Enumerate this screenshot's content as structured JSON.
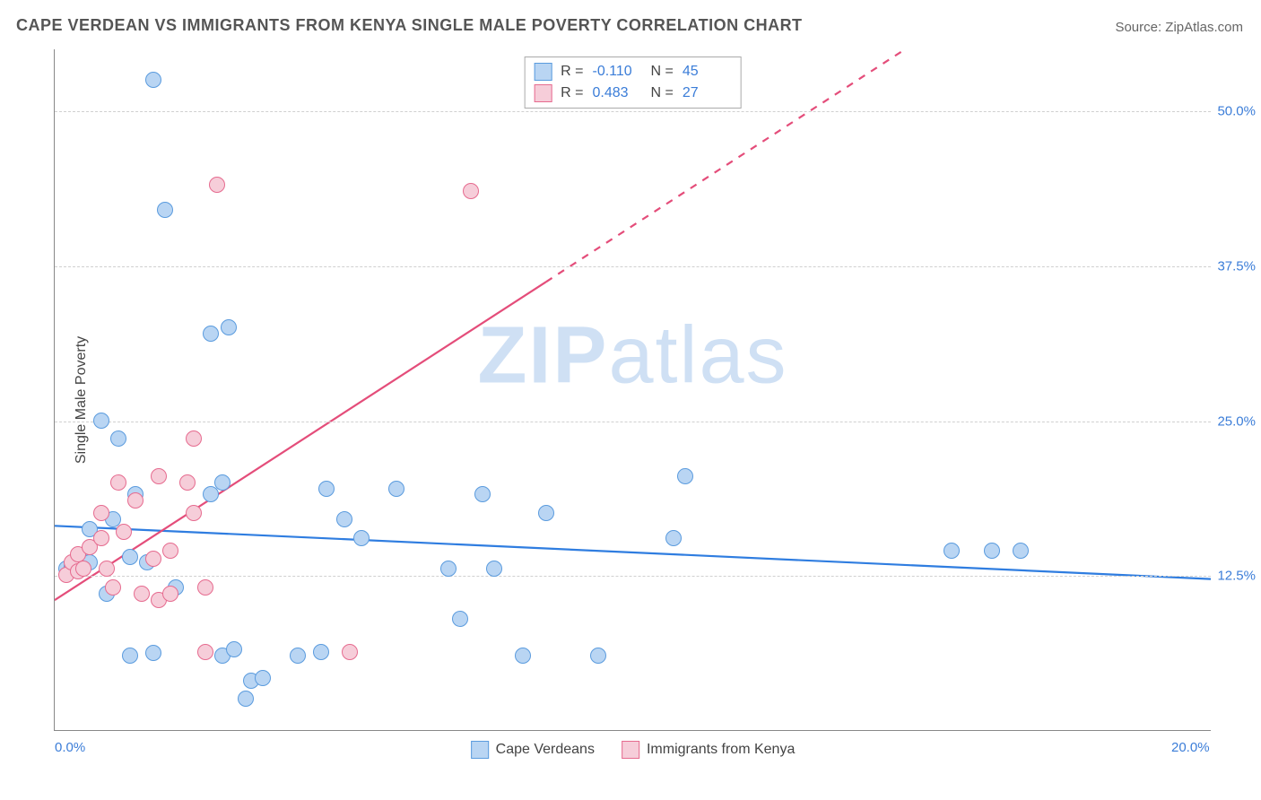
{
  "chart": {
    "type": "scatter",
    "title": "CAPE VERDEAN VS IMMIGRANTS FROM KENYA SINGLE MALE POVERTY CORRELATION CHART",
    "source_label": "Source: ZipAtlas.com",
    "ylabel": "Single Male Poverty",
    "watermark": {
      "bold": "ZIP",
      "light": "atlas"
    },
    "xlim": [
      0,
      20
    ],
    "ylim": [
      0,
      55
    ],
    "xticks": [
      {
        "value": 0,
        "label": "0.0%"
      },
      {
        "value": 20,
        "label": "20.0%"
      }
    ],
    "yticks": [
      {
        "value": 12.5,
        "label": "12.5%"
      },
      {
        "value": 25.0,
        "label": "25.0%"
      },
      {
        "value": 37.5,
        "label": "37.5%"
      },
      {
        "value": 50.0,
        "label": "50.0%"
      }
    ],
    "grid_color": "#d0d0d0",
    "background_color": "#ffffff",
    "axis_color": "#888888",
    "dot_radius": 9,
    "dot_border_width": 1.2,
    "series": [
      {
        "key": "cape_verdeans",
        "label": "Cape Verdeans",
        "fill_color": "#b9d5f3",
        "border_color": "#5a9bde",
        "r_value": "-0.110",
        "n_value": "45",
        "trendline": {
          "color": "#2f7de0",
          "width": 2.2,
          "dash": "none",
          "y_at_x0": 16.5,
          "y_at_x20": 12.2
        },
        "points": [
          [
            0.2,
            13.0
          ],
          [
            0.3,
            13.2
          ],
          [
            0.4,
            13.8
          ],
          [
            0.5,
            14.0
          ],
          [
            0.6,
            13.5
          ],
          [
            0.6,
            16.2
          ],
          [
            1.0,
            17.0
          ],
          [
            0.9,
            11.0
          ],
          [
            0.8,
            25.0
          ],
          [
            1.1,
            23.5
          ],
          [
            1.3,
            14.0
          ],
          [
            1.4,
            19.0
          ],
          [
            1.6,
            13.5
          ],
          [
            1.7,
            52.5
          ],
          [
            1.9,
            42.0
          ],
          [
            1.3,
            6.0
          ],
          [
            1.7,
            6.2
          ],
          [
            2.1,
            11.5
          ],
          [
            2.7,
            32.0
          ],
          [
            3.0,
            32.5
          ],
          [
            2.7,
            19.0
          ],
          [
            2.9,
            20.0
          ],
          [
            2.9,
            6.0
          ],
          [
            3.1,
            6.5
          ],
          [
            3.3,
            2.5
          ],
          [
            3.4,
            4.0
          ],
          [
            3.6,
            4.2
          ],
          [
            4.2,
            6.0
          ],
          [
            4.6,
            6.3
          ],
          [
            4.7,
            19.5
          ],
          [
            5.0,
            17.0
          ],
          [
            5.3,
            15.5
          ],
          [
            5.9,
            19.5
          ],
          [
            6.8,
            13.0
          ],
          [
            7.0,
            9.0
          ],
          [
            7.4,
            19.0
          ],
          [
            7.6,
            13.0
          ],
          [
            8.1,
            6.0
          ],
          [
            8.5,
            17.5
          ],
          [
            9.4,
            6.0
          ],
          [
            10.7,
            15.5
          ],
          [
            10.9,
            20.5
          ],
          [
            15.5,
            14.5
          ],
          [
            16.2,
            14.5
          ],
          [
            16.7,
            14.5
          ]
        ]
      },
      {
        "key": "kenya",
        "label": "Immigrants from Kenya",
        "fill_color": "#f6cdd9",
        "border_color": "#e66b8f",
        "r_value": "0.483",
        "n_value": "27",
        "trendline": {
          "color": "#e44d7a",
          "width": 2.2,
          "dash_solid_until_x": 8.5,
          "y_at_x0": 10.5,
          "y_at_x20": 71.0
        },
        "points": [
          [
            0.2,
            12.5
          ],
          [
            0.3,
            13.5
          ],
          [
            0.4,
            14.2
          ],
          [
            0.4,
            12.8
          ],
          [
            0.5,
            13.0
          ],
          [
            0.6,
            14.8
          ],
          [
            0.8,
            17.5
          ],
          [
            0.8,
            15.5
          ],
          [
            0.9,
            13.0
          ],
          [
            1.0,
            11.5
          ],
          [
            1.1,
            20.0
          ],
          [
            1.2,
            16.0
          ],
          [
            1.4,
            18.5
          ],
          [
            1.5,
            11.0
          ],
          [
            1.7,
            13.8
          ],
          [
            1.8,
            20.5
          ],
          [
            1.8,
            10.5
          ],
          [
            2.0,
            11.0
          ],
          [
            2.0,
            14.5
          ],
          [
            2.3,
            20.0
          ],
          [
            2.4,
            23.5
          ],
          [
            2.4,
            17.5
          ],
          [
            2.6,
            6.3
          ],
          [
            2.8,
            44.0
          ],
          [
            2.6,
            11.5
          ],
          [
            5.1,
            6.3
          ],
          [
            7.2,
            43.5
          ]
        ]
      }
    ],
    "stat_legend": {
      "r_label": "R =",
      "n_label": "N ="
    }
  }
}
